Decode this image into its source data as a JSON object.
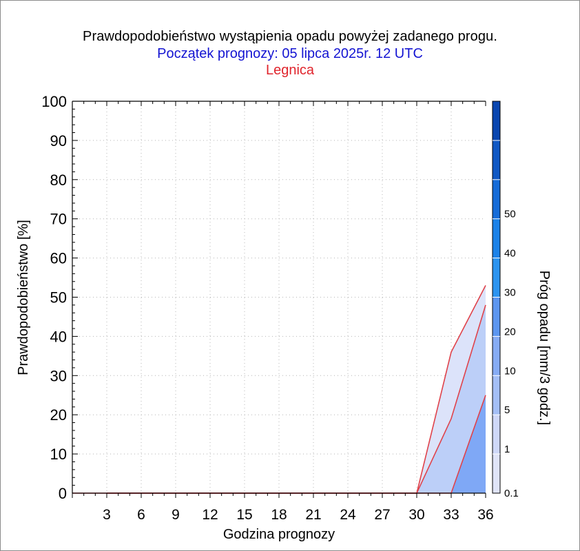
{
  "title": "Prawdopodobieństwo wystąpienia opadu powyżej zadanego progu.",
  "subtitle": "Początek prognozy: 05 lipca 2025r. 12 UTC",
  "location": "Legnica",
  "colors": {
    "title": "#000000",
    "subtitle": "#1414d2",
    "location": "#e0242c",
    "curve_line": "#e0424a",
    "grid": "#b4b4b4"
  },
  "chart_data": {
    "type": "area",
    "xlabel": "Godzina prognozy",
    "ylabel": "Prawdopodobieństwo [%]",
    "xlim": [
      0,
      36
    ],
    "ylim": [
      0,
      100
    ],
    "xticks": [
      "3",
      "6",
      "9",
      "12",
      "15",
      "18",
      "21",
      "24",
      "27",
      "30",
      "33",
      "36"
    ],
    "yticks": [
      "0",
      "10",
      "20",
      "30",
      "40",
      "50",
      "60",
      "70",
      "80",
      "90",
      "100"
    ],
    "grid": true,
    "x": [
      3,
      6,
      9,
      12,
      15,
      18,
      21,
      24,
      27,
      30,
      33,
      36
    ],
    "series": [
      {
        "name": "0.1",
        "color": "#dce3fa",
        "values": [
          0,
          0,
          0,
          0,
          0,
          0,
          0,
          0,
          0,
          0,
          36,
          53
        ]
      },
      {
        "name": "1",
        "color": "#bccff8",
        "values": [
          0,
          0,
          0,
          0,
          0,
          0,
          0,
          0,
          0,
          0,
          19,
          48
        ]
      },
      {
        "name": "5",
        "color": "#7fa8f6",
        "values": [
          0,
          0,
          0,
          0,
          0,
          0,
          0,
          0,
          0,
          0,
          0,
          25
        ]
      }
    ],
    "colorbar": {
      "label": "Próg opadu [mm/3 godz.]",
      "tick_labels": [
        "0.1",
        "1",
        "5",
        "10",
        "20",
        "30",
        "40",
        "50"
      ],
      "colors": [
        "#e0e4f8",
        "#cfd8f8",
        "#a4bff6",
        "#86acf4",
        "#5c96f0",
        "#2c94f0",
        "#1c82e8",
        "#166cd8",
        "#1058c4",
        "#0a46b0"
      ]
    }
  }
}
